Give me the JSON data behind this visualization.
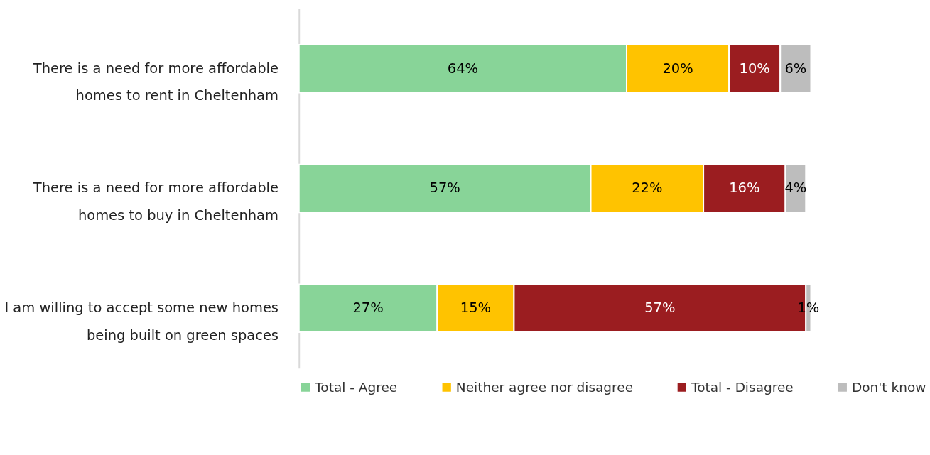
{
  "chart_data": {
    "type": "bar",
    "orientation": "horizontal",
    "stacked": true,
    "legend": "bottom",
    "categories": [
      "There is a need for more affordable homes to rent in Cheltenham",
      "There is a need for more affordable homes to buy in Cheltenham",
      "I am willing to accept some new homes being built on green spaces"
    ],
    "series": [
      {
        "name": "Total - Agree",
        "color": "#88d498",
        "values": [
          64,
          57,
          27
        ],
        "value_labels": [
          "64%",
          "57%",
          "27%"
        ]
      },
      {
        "name": "Neither agree nor disagree",
        "color": "#ffc300",
        "values": [
          20,
          22,
          15
        ],
        "value_labels": [
          "20%",
          "22%",
          "15%"
        ]
      },
      {
        "name": "Total - Disagree",
        "color": "#9b1d20",
        "values": [
          10,
          16,
          57
        ],
        "value_labels": [
          "10%",
          "16%",
          "57%"
        ]
      },
      {
        "name": "Don't know",
        "color": "#bdbdbd",
        "values": [
          6,
          4,
          1
        ],
        "value_labels": [
          "6%",
          "4%",
          "1%"
        ]
      }
    ]
  }
}
